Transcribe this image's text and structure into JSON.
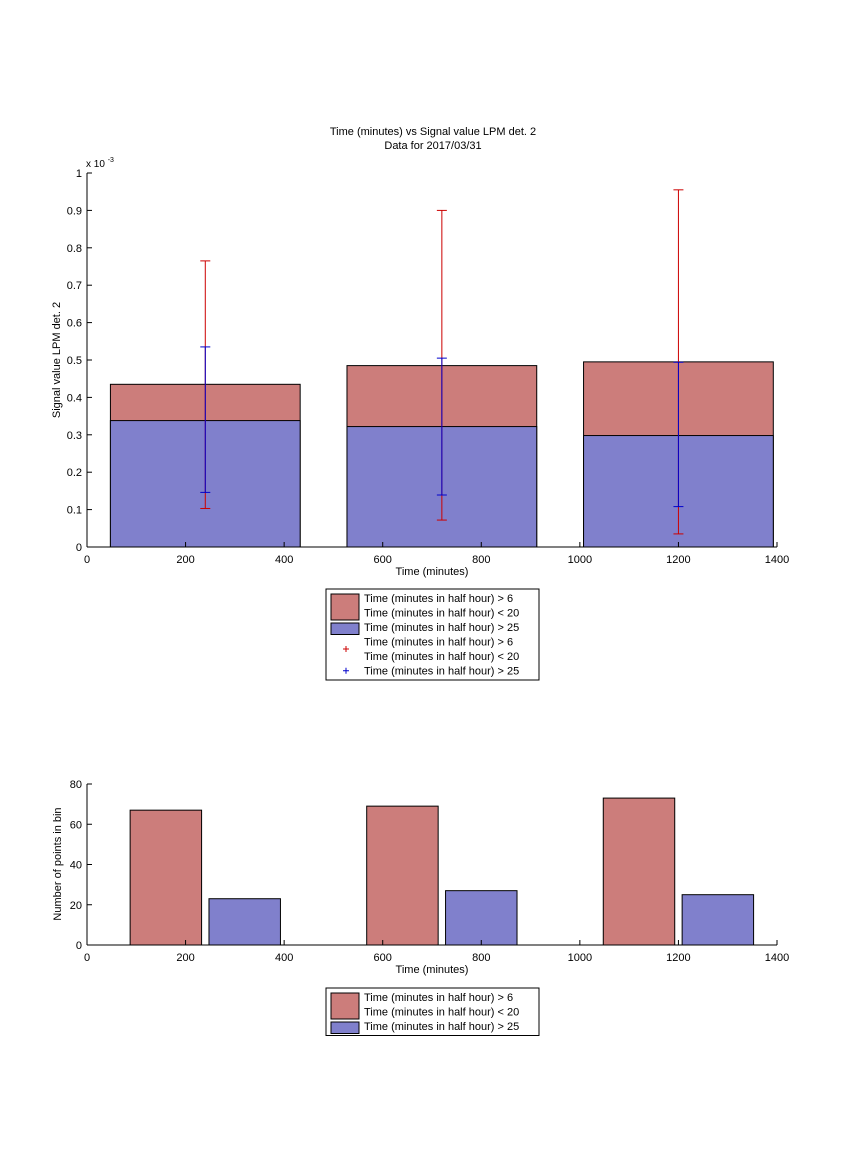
{
  "chart_data": [
    {
      "type": "bar",
      "title": "Time (minutes) vs Signal value LPM det. 2",
      "subtitle": "Data for 2017/03/31",
      "xlabel": "Time (minutes)",
      "ylabel": "Signal value LPM det. 2",
      "y_exponent_label": "x 10",
      "y_exponent_power": "-3",
      "xlim": [
        0,
        1400
      ],
      "ylim": [
        0,
        1.0
      ],
      "x_ticks": [
        "0",
        "200",
        "400",
        "600",
        "800",
        "1000",
        "1200",
        "1400"
      ],
      "y_ticks": [
        "0",
        "0.1",
        "0.2",
        "0.3",
        "0.4",
        "0.5",
        "0.6",
        "0.7",
        "0.8",
        "0.9",
        "1"
      ],
      "grid": false,
      "legend_position": "below",
      "bar_width": 385,
      "series": [
        {
          "name": "Time (minutes in half hour) > 6\nTime (minutes in half hour) < 20",
          "kind": "bar",
          "color": "#cc7d7b",
          "x": [
            240,
            720,
            1200
          ],
          "values": [
            0.435,
            0.485,
            0.495
          ]
        },
        {
          "name": "Time (minutes in half hour) > 25",
          "kind": "bar",
          "color": "#8080cc",
          "x": [
            240,
            720,
            1200
          ],
          "values": [
            0.338,
            0.322,
            0.298
          ]
        },
        {
          "name": "Time (minutes in half hour) > 6\nTime (minutes in half hour) < 20",
          "kind": "errorbar",
          "color": "#cc0000",
          "x": [
            240,
            720,
            1200
          ],
          "center": [
            0.435,
            0.485,
            0.495
          ],
          "low": [
            0.103,
            0.072,
            0.035
          ],
          "high": [
            0.765,
            0.9,
            0.955
          ]
        },
        {
          "name": "Time (minutes in half hour) > 25",
          "kind": "errorbar",
          "color": "#0000cc",
          "x": [
            240,
            720,
            1200
          ],
          "center": [
            0.338,
            0.322,
            0.298
          ],
          "low": [
            0.146,
            0.139,
            0.108
          ],
          "high": [
            0.535,
            0.505,
            0.494
          ]
        }
      ],
      "legend": [
        {
          "text": "Time (minutes in half hour) > 6",
          "text2": "Time (minutes in half hour) < 20",
          "kind": "patch",
          "color": "#cc7d7b"
        },
        {
          "text": "Time (minutes in half hour) > 25",
          "kind": "patch",
          "color": "#8080cc"
        },
        {
          "text": "Time (minutes in half hour) > 6",
          "text2": "Time (minutes in half hour) < 20",
          "kind": "marker",
          "color": "#cc0000"
        },
        {
          "text": "Time (minutes in half hour) > 25",
          "kind": "marker",
          "color": "#0000cc"
        }
      ]
    },
    {
      "type": "bar",
      "title": "",
      "xlabel": "Time (minutes)",
      "ylabel": "Number of points in bin",
      "xlim": [
        0,
        1400
      ],
      "ylim": [
        0,
        80
      ],
      "x_ticks": [
        "0",
        "200",
        "400",
        "600",
        "800",
        "1000",
        "1200",
        "1400"
      ],
      "y_ticks": [
        "0",
        "20",
        "40",
        "60",
        "80"
      ],
      "grid": false,
      "legend_position": "below",
      "bar_width": 145,
      "series": [
        {
          "name": "Time (minutes in half hour) > 6\nTime (minutes in half hour) < 20",
          "color": "#cc7d7b",
          "x": [
            160,
            640,
            1120
          ],
          "values": [
            67,
            69,
            73
          ]
        },
        {
          "name": "Time (minutes in half hour) > 25",
          "color": "#8080cc",
          "x": [
            320,
            800,
            1280
          ],
          "values": [
            23,
            27,
            25
          ]
        }
      ],
      "legend": [
        {
          "text": "Time (minutes in half hour) > 6",
          "text2": "Time (minutes in half hour) < 20",
          "kind": "patch",
          "color": "#cc7d7b"
        },
        {
          "text": "Time (minutes in half hour) > 25",
          "kind": "patch",
          "color": "#8080cc"
        }
      ]
    }
  ]
}
